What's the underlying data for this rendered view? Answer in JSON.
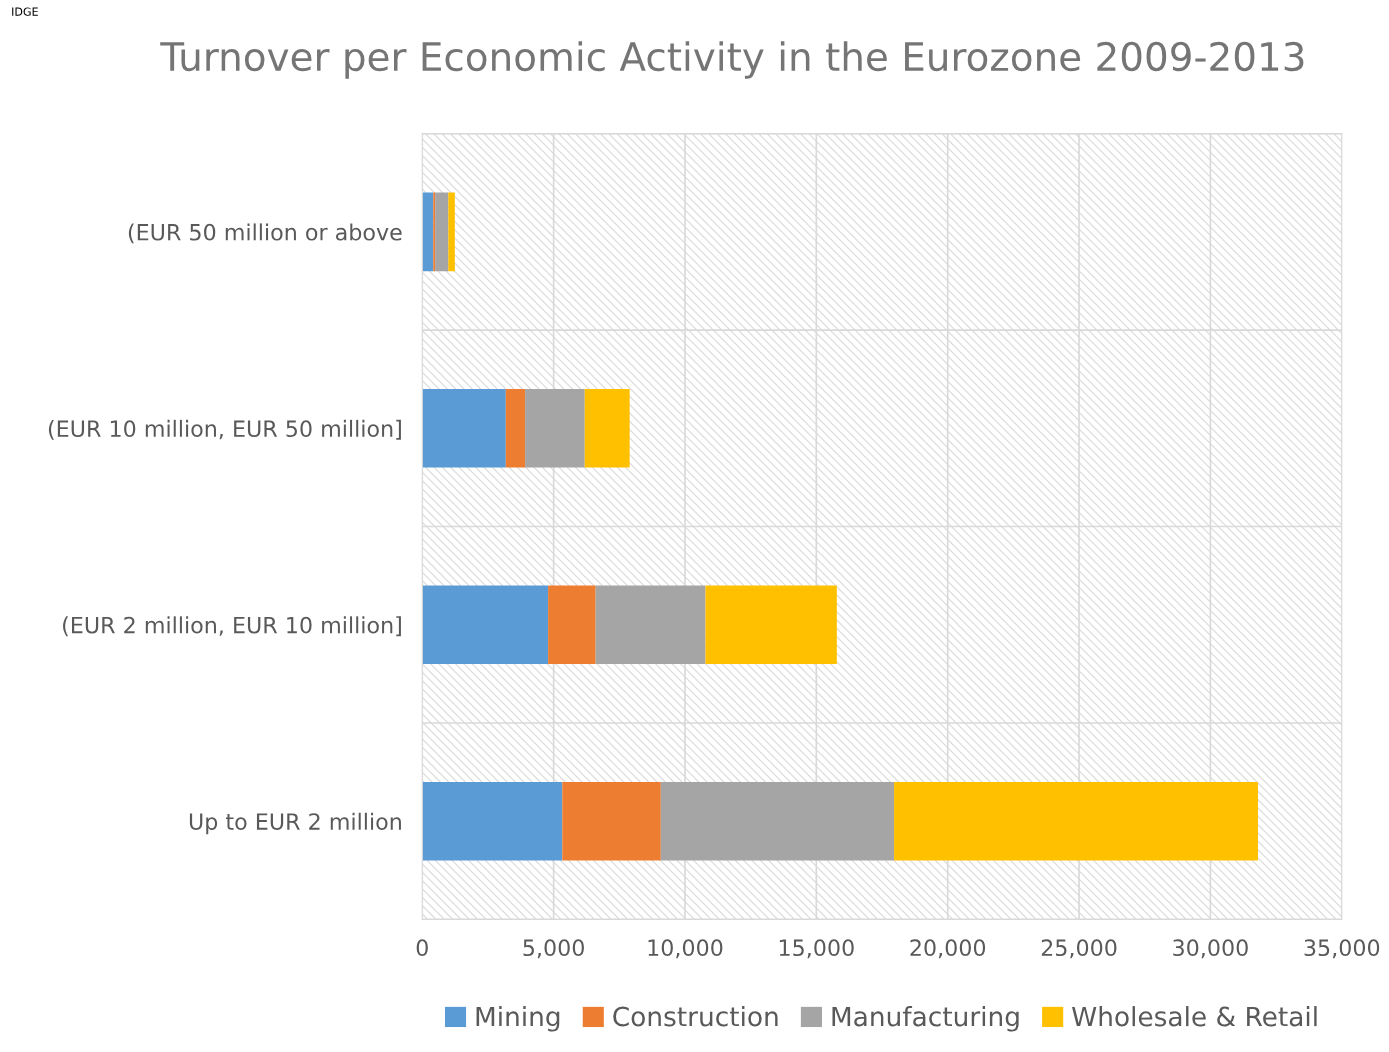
{
  "chart_data": {
    "type": "bar",
    "orientation": "horizontal",
    "stacked": true,
    "title": "Turnover per Economic Activity in the Eurozone 2009-2013",
    "annotations": [
      "IDGE"
    ],
    "categories": [
      "(EUR 50 million or above",
      "(EUR 10 million, EUR 50 million]",
      "(EUR 2 million, EUR 10 million]",
      "Up to EUR 2 million"
    ],
    "series": [
      {
        "name": "Mining",
        "color": "#5b9bd5",
        "values": [
          420,
          3180,
          4790,
          5330
        ]
      },
      {
        "name": "Construction",
        "color": "#ed7d31",
        "values": [
          70,
          735,
          1810,
          3750
        ]
      },
      {
        "name": "Manufacturing",
        "color": "#a5a5a5",
        "values": [
          500,
          2270,
          4180,
          8880
        ]
      },
      {
        "name": "Wholesale & Retail",
        "color": "#ffc000",
        "values": [
          250,
          1710,
          5000,
          13850
        ]
      }
    ],
    "xlim": [
      0,
      35000
    ],
    "xticks": [
      {
        "value": 0,
        "label": "0"
      },
      {
        "value": 5000,
        "label": "5,000"
      },
      {
        "value": 10000,
        "label": "10,000"
      },
      {
        "value": 15000,
        "label": "15,000"
      },
      {
        "value": 20000,
        "label": "20,000"
      },
      {
        "value": 25000,
        "label": "25,000"
      },
      {
        "value": 30000,
        "label": "30,000"
      },
      {
        "value": 35000,
        "label": "35,000"
      }
    ],
    "grid": true,
    "legend": "bottom"
  }
}
